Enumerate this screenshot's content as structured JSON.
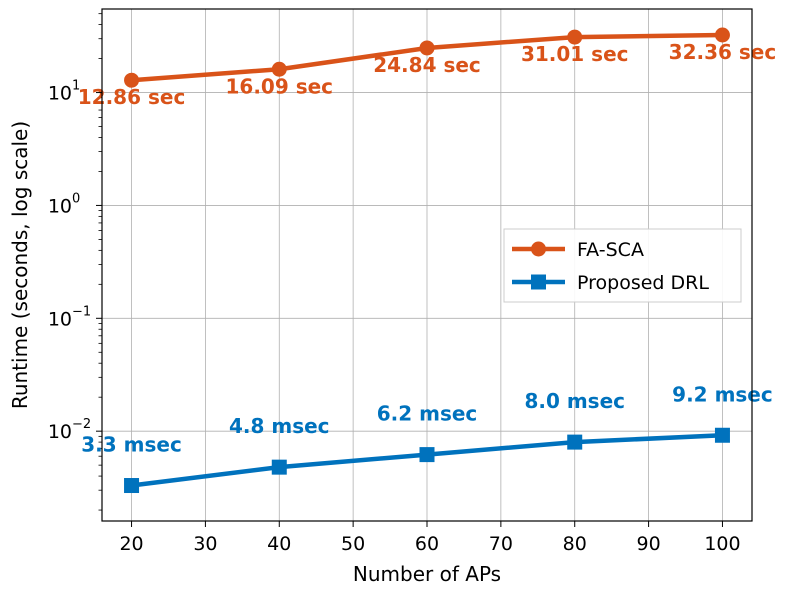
{
  "chart_data": {
    "type": "line",
    "title": "",
    "xlabel": "Number of APs",
    "ylabel": "Runtime (seconds, log scale)",
    "yscale": "log",
    "x": [
      20,
      40,
      60,
      80,
      100
    ],
    "xlim": [
      16,
      104
    ],
    "xticks": [
      20,
      30,
      40,
      50,
      60,
      70,
      80,
      90,
      100
    ],
    "ylim": [
      0.0016,
      55
    ],
    "yticks": [
      {
        "value": 0.01,
        "base": "10",
        "exp": "−2"
      },
      {
        "value": 0.1,
        "base": "10",
        "exp": "−1"
      },
      {
        "value": 1,
        "base": "10",
        "exp": "0"
      },
      {
        "value": 10,
        "base": "10",
        "exp": "1"
      }
    ],
    "grid": true,
    "legend_position": "center-right",
    "series": [
      {
        "name": "FA-SCA",
        "color": "#d95319",
        "marker": "circle",
        "values": [
          12.86,
          16.09,
          24.84,
          31.01,
          32.36
        ],
        "labels": [
          "12.86 sec",
          "16.09 sec",
          "24.84 sec",
          "31.01 sec",
          "32.36 sec"
        ]
      },
      {
        "name": "Proposed DRL",
        "color": "#0072bd",
        "marker": "square",
        "values": [
          0.0033,
          0.0048,
          0.0062,
          0.008,
          0.0092
        ],
        "labels": [
          "3.3 msec",
          "4.8 msec",
          "6.2 msec",
          "8.0 msec",
          "9.2 msec"
        ]
      }
    ]
  }
}
